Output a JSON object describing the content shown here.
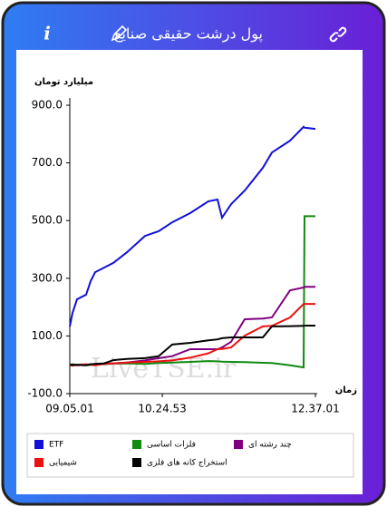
{
  "header": {
    "title": "پول درشت حقیقی صنایع",
    "info": "i"
  },
  "chart_data": {
    "type": "line",
    "ylabel": "میلیارد تومان",
    "xlabel": "زمان",
    "watermark": "LiveTSE.ir",
    "x": [
      32701,
      32842,
      33077,
      33546,
      33781,
      34016,
      34485,
      34954,
      35658,
      36597,
      37301,
      38005,
      38944,
      39883,
      40352,
      40587,
      41056,
      41760,
      42699,
      43169,
      44107,
      44813,
      44860,
      45421
    ],
    "xlim": [
      32701,
      45421
    ],
    "xticks": [
      {
        "value": 32701,
        "label": "09.05.01"
      },
      {
        "value": 37493,
        "label": "10.24.53"
      },
      {
        "value": 45421,
        "label": "12.37.01"
      }
    ],
    "ylim": [
      -100,
      900
    ],
    "yticks": [
      {
        "value": 900,
        "label": "900.0"
      },
      {
        "value": 700,
        "label": "700.0"
      },
      {
        "value": 500,
        "label": "500.0"
      },
      {
        "value": 300,
        "label": "300.0"
      },
      {
        "value": 100,
        "label": "100.0"
      },
      {
        "value": -100,
        "label": "-100.0"
      }
    ],
    "grid": false,
    "series": [
      {
        "name": "ETF",
        "color": "#1010d8",
        "values": [
          133,
          180,
          227,
          243,
          290,
          321,
          337,
          353,
          390,
          447,
          463,
          494,
          526,
          567,
          573,
          510,
          557,
          604,
          683,
          736,
          777,
          825,
          822,
          818
        ]
      },
      {
        "name": "فلزات اساسی",
        "color": "#108a10",
        "values": [
          0,
          2,
          0,
          -2,
          0,
          3,
          2,
          4,
          5,
          3,
          6,
          8,
          10,
          13,
          12,
          11,
          10,
          9,
          7,
          6,
          -2,
          -9,
          515,
          515
        ]
      },
      {
        "name": "چند رشته ای",
        "color": "#800080",
        "values": [
          0,
          0,
          -2,
          0,
          2,
          0,
          3,
          5,
          8,
          15,
          23,
          30,
          54,
          54,
          54,
          60,
          80,
          158,
          160,
          164,
          258,
          268,
          270,
          270
        ]
      },
      {
        "name": "شیمیایی",
        "color": "#ee1010",
        "values": [
          0,
          -3,
          0,
          2,
          0,
          -2,
          3,
          5,
          8,
          10,
          12,
          15,
          25,
          40,
          54,
          55,
          60,
          101,
          133,
          135,
          164,
          211,
          211,
          211
        ]
      },
      {
        "name": "استخراج کانه های فلزی",
        "color": "#000000",
        "values": [
          0,
          0,
          0,
          -2,
          2,
          3,
          5,
          16,
          20,
          23,
          30,
          70,
          76,
          85,
          88,
          92,
          95,
          95,
          95,
          133,
          134,
          135,
          136,
          136
        ]
      }
    ]
  }
}
